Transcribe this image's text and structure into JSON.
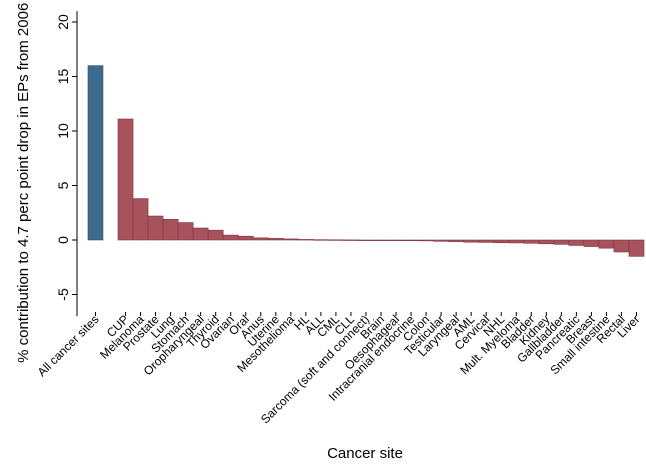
{
  "chart_data": {
    "type": "bar",
    "xlabel": "Cancer site",
    "ylabel": "% contribution to 4.7 perc point drop in EPs from 2006 to 2015",
    "ylim": [
      -7,
      21
    ],
    "yticks": [
      -5,
      0,
      5,
      10,
      15,
      20
    ],
    "grid": false,
    "categories": [
      "All cancer sites",
      "CUP",
      "Melanoma",
      "Prostate",
      "Lung",
      "Stomach",
      "Oropharyngeal",
      "Thyroid",
      "Ovarian",
      "Oral",
      "Anus",
      "Uterine",
      "Mesothelioma",
      "HL",
      "ALL",
      "CML",
      "CLL",
      "Sarcoma (soft and connect)",
      "Brain",
      "Oesophageal",
      "Intracranial endocrine",
      "Colon",
      "Testicular",
      "Laryngeal",
      "AML",
      "Cervical",
      "NHL",
      "Mult. Myeloma",
      "Bladder",
      "Kidney",
      "Gallbladder",
      "Pancreatic",
      "Breast",
      "Small intestine",
      "Rectal",
      "Liver"
    ],
    "series": [
      {
        "values": [
          16.0,
          11.1,
          3.8,
          2.2,
          1.9,
          1.6,
          1.1,
          0.9,
          0.45,
          0.35,
          0.2,
          0.15,
          0.1,
          0.05,
          0.03,
          0.02,
          0.01,
          0.0,
          -0.02,
          -0.04,
          -0.06,
          -0.08,
          -0.12,
          -0.15,
          -0.2,
          -0.22,
          -0.25,
          -0.27,
          -0.3,
          -0.35,
          -0.4,
          -0.5,
          -0.6,
          -0.75,
          -1.1,
          -1.5
        ],
        "colors": [
          "#3e6a8e",
          "#a8525d"
        ]
      }
    ]
  }
}
